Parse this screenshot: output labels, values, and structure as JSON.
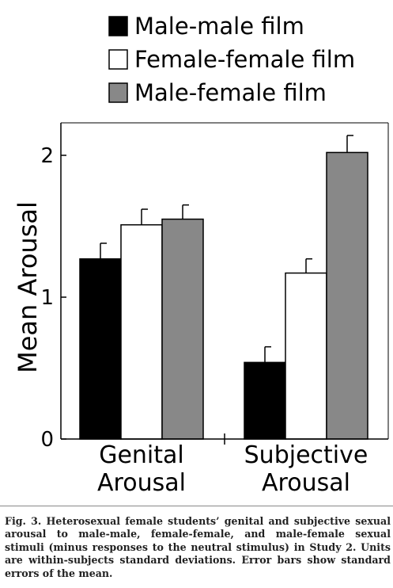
{
  "chart_data": {
    "type": "bar",
    "categories": [
      [
        "Genital",
        "Arousal"
      ],
      [
        "Subjective",
        "Arousal"
      ]
    ],
    "series": [
      {
        "name": "Male-male film",
        "color": "#000000",
        "values": [
          1.27,
          0.54
        ],
        "errors": [
          0.11,
          0.11
        ]
      },
      {
        "name": "Female-female film",
        "color": "#ffffff",
        "values": [
          1.51,
          1.17
        ],
        "errors": [
          0.11,
          0.1
        ]
      },
      {
        "name": "Male-female film",
        "color": "#888888",
        "values": [
          1.55,
          2.02
        ],
        "errors": [
          0.1,
          0.12
        ]
      }
    ],
    "ylabel": "Mean Arousal",
    "yticks": [
      "0",
      "1",
      "2"
    ],
    "ylim": [
      0,
      2.2
    ],
    "legend_position": "top",
    "grid": false
  },
  "caption": {
    "label": "Fig. 3.",
    "text": "Heterosexual female students’ genital and subjective sexual arousal to male-male, female-female, and male-female sexual stimuli (minus responses to the neutral stimulus) in Study 2. Units are within-subjects standard deviations. Error bars show standard errors of the mean."
  }
}
